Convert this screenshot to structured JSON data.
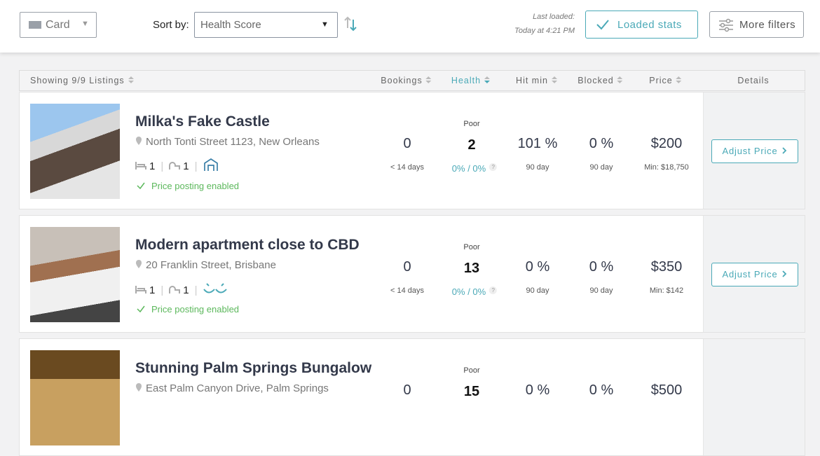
{
  "toolbar": {
    "view": "Card",
    "sort_label": "Sort by:",
    "sort_value": "Health Score",
    "last_loaded_label": "Last loaded:",
    "last_loaded_time": "Today at 4:21 PM",
    "loaded_button": "Loaded stats",
    "filters_button": "More filters"
  },
  "table": {
    "columns": [
      "Showing 9/9 Listings",
      "Bookings",
      "Health",
      "Hit min",
      "Blocked",
      "Price",
      "Details"
    ],
    "listings": [
      {
        "name": "Milka's Fake Castle",
        "address": "North Tonti Street 1123, New Orleans",
        "beds": "1",
        "baths": "1",
        "status": "Price posting enabled",
        "bookings": "0",
        "bookings_sub": "< 14 days",
        "health_label": "Poor",
        "health": "2",
        "health_sub": "0% / 0%",
        "health_help": "?",
        "hit_min": "101 %",
        "hit_min_sub": "90 day",
        "blocked": "0 %",
        "blocked_sub": "90 day",
        "price": "$200",
        "price_sub": "Min: $18,750",
        "action": "Adjust Price"
      },
      {
        "name": "Modern apartment close to CBD",
        "address": "20 Franklin Street, Brisbane",
        "beds": "1",
        "baths": "1",
        "status": "Price posting enabled",
        "bookings": "0",
        "bookings_sub": "< 14 days",
        "health_label": "Poor",
        "health": "13",
        "health_sub": "0% / 0%",
        "health_help": "?",
        "hit_min": "0 %",
        "hit_min_sub": "90 day",
        "blocked": "0 %",
        "blocked_sub": "90 day",
        "price": "$350",
        "price_sub": "Min: $142",
        "action": "Adjust Price"
      },
      {
        "name": "Stunning Palm Springs Bungalow",
        "address": "East Palm Canyon Drive, Palm Springs",
        "health_label": "Poor",
        "health": "15",
        "bookings": "0",
        "hit_min": "0 %",
        "blocked": "0 %",
        "price": "$500"
      }
    ]
  }
}
